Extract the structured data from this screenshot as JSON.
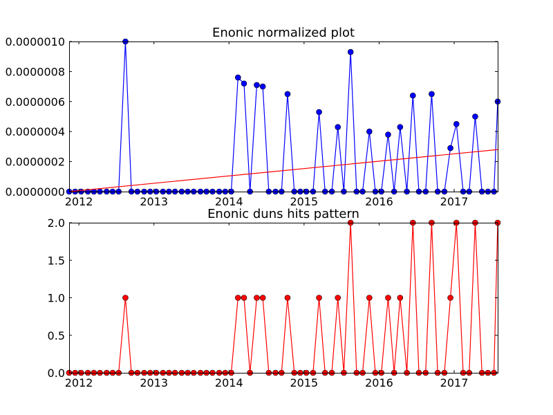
{
  "chart_data": [
    {
      "type": "line",
      "title": "Enonic normalized plot",
      "xlabel": "",
      "ylabel": "",
      "xlim": [
        2011.87,
        2017.58
      ],
      "ylim": [
        0,
        1e-06
      ],
      "x_ticks": [
        "2012",
        "2013",
        "2014",
        "2015",
        "2016",
        "2017"
      ],
      "y_ticks": [
        "0.0000000",
        "0.0000002",
        "0.0000004",
        "0.0000006",
        "0.0000008",
        "0.0000010"
      ],
      "grid": false,
      "legend": "none",
      "series": [
        {
          "style": "line-with-markers",
          "color": "#0000ff",
          "marker_color": "#0000ff",
          "x": [
            2011.87,
            2011.95,
            2012.03,
            2012.12,
            2012.2,
            2012.28,
            2012.37,
            2012.45,
            2012.53,
            2012.62,
            2012.7,
            2012.78,
            2012.87,
            2012.95,
            2013.03,
            2013.12,
            2013.2,
            2013.28,
            2013.37,
            2013.45,
            2013.53,
            2013.62,
            2013.7,
            2013.78,
            2013.87,
            2013.95,
            2014.03,
            2014.12,
            2014.2,
            2014.28,
            2014.37,
            2014.45,
            2014.53,
            2014.62,
            2014.7,
            2014.78,
            2014.87,
            2014.95,
            2015.03,
            2015.12,
            2015.2,
            2015.28,
            2015.37,
            2015.45,
            2015.53,
            2015.62,
            2015.7,
            2015.78,
            2015.87,
            2015.95,
            2016.03,
            2016.12,
            2016.2,
            2016.28,
            2016.37,
            2016.45,
            2016.53,
            2016.62,
            2016.7,
            2016.78,
            2016.87,
            2016.95,
            2017.03,
            2017.12,
            2017.2,
            2017.28,
            2017.37,
            2017.45,
            2017.53,
            2017.58
          ],
          "y": [
            0,
            0,
            0,
            0,
            0,
            0,
            0,
            0,
            0,
            1e-06,
            0,
            0,
            0,
            0,
            0,
            0,
            0,
            0,
            0,
            0,
            0,
            0,
            0,
            0,
            0,
            0,
            0,
            7.6e-07,
            7.2e-07,
            0,
            7.1e-07,
            7e-07,
            0,
            0,
            0,
            6.5e-07,
            0,
            0,
            0,
            0,
            5.3e-07,
            0,
            0,
            4.3e-07,
            0,
            9.3e-07,
            0,
            0,
            4e-07,
            0,
            0,
            3.8e-07,
            0,
            4.3e-07,
            0,
            6.4e-07,
            0,
            0,
            6.5e-07,
            0,
            0,
            2.9e-07,
            4.5e-07,
            0,
            0,
            5e-07,
            0,
            0,
            0,
            6e-07
          ]
        },
        {
          "style": "line",
          "color": "#ff0000",
          "x": [
            2011.87,
            2017.58
          ],
          "y": [
            0,
            2.8e-07
          ]
        }
      ]
    },
    {
      "type": "line",
      "title": "Enonic duns hits pattern",
      "xlabel": "",
      "ylabel": "",
      "xlim": [
        2011.87,
        2017.58
      ],
      "ylim": [
        0,
        2.0
      ],
      "x_ticks": [
        "2012",
        "2013",
        "2014",
        "2015",
        "2016",
        "2017"
      ],
      "y_ticks": [
        "0.0",
        "0.5",
        "1.0",
        "1.5",
        "2.0"
      ],
      "grid": false,
      "legend": "none",
      "series": [
        {
          "style": "line-with-markers",
          "color": "#ff0000",
          "marker_color": "#ff0000",
          "x": [
            2011.87,
            2011.95,
            2012.03,
            2012.12,
            2012.2,
            2012.28,
            2012.37,
            2012.45,
            2012.53,
            2012.62,
            2012.7,
            2012.78,
            2012.87,
            2012.95,
            2013.03,
            2013.12,
            2013.2,
            2013.28,
            2013.37,
            2013.45,
            2013.53,
            2013.62,
            2013.7,
            2013.78,
            2013.87,
            2013.95,
            2014.03,
            2014.12,
            2014.2,
            2014.28,
            2014.37,
            2014.45,
            2014.53,
            2014.62,
            2014.7,
            2014.78,
            2014.87,
            2014.95,
            2015.03,
            2015.12,
            2015.2,
            2015.28,
            2015.37,
            2015.45,
            2015.53,
            2015.62,
            2015.7,
            2015.78,
            2015.87,
            2015.95,
            2016.03,
            2016.12,
            2016.2,
            2016.28,
            2016.37,
            2016.45,
            2016.53,
            2016.62,
            2016.7,
            2016.78,
            2016.87,
            2016.95,
            2017.03,
            2017.12,
            2017.2,
            2017.28,
            2017.37,
            2017.45,
            2017.53,
            2017.58
          ],
          "y": [
            0,
            0,
            0,
            0,
            0,
            0,
            0,
            0,
            0,
            1,
            0,
            0,
            0,
            0,
            0,
            0,
            0,
            0,
            0,
            0,
            0,
            0,
            0,
            0,
            0,
            0,
            0,
            1,
            1,
            0,
            1,
            1,
            0,
            0,
            0,
            1,
            0,
            0,
            0,
            0,
            1,
            0,
            0,
            1,
            0,
            2,
            0,
            0,
            1,
            0,
            0,
            1,
            0,
            1,
            0,
            2,
            0,
            0,
            2,
            0,
            0,
            1,
            2,
            0,
            0,
            2,
            0,
            0,
            0,
            2
          ]
        }
      ]
    }
  ]
}
